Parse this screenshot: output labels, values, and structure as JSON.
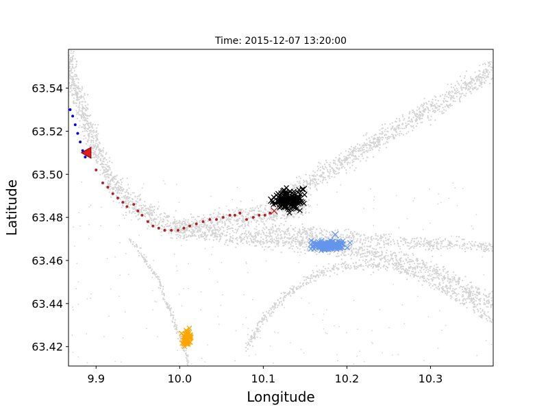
{
  "chart_data": {
    "type": "scatter",
    "title": "Time: 2015-12-07 13:20:00",
    "xlabel": "Longitude",
    "ylabel": "Latitude",
    "xlim": [
      9.867,
      10.375
    ],
    "ylim": [
      63.411,
      63.558
    ],
    "xticks": [
      "9.9",
      "10.0",
      "10.1",
      "10.2",
      "10.3"
    ],
    "xtick_values": [
      9.9,
      10.0,
      10.1,
      10.2,
      10.3
    ],
    "yticks": [
      "63.42",
      "63.44",
      "63.46",
      "63.48",
      "63.50",
      "63.52",
      "63.54"
    ],
    "ytick_values": [
      63.42,
      63.44,
      63.46,
      63.48,
      63.5,
      63.52,
      63.54
    ],
    "grid": false,
    "legend": false,
    "background_traffic": {
      "color": "#d3d3d3",
      "marker": "dot",
      "lanes": [
        {
          "points": [
            [
              9.867,
              63.555
            ],
            [
              9.875,
              63.538
            ],
            [
              9.89,
              63.522
            ],
            [
              9.905,
              63.508
            ],
            [
              9.92,
              63.496
            ],
            [
              9.94,
              63.488
            ],
            [
              9.96,
              63.482
            ],
            [
              9.98,
              63.477
            ],
            [
              10.0,
              63.475
            ],
            [
              10.03,
              63.476
            ],
            [
              10.06,
              63.479
            ],
            [
              10.09,
              63.481
            ],
            [
              10.12,
              63.482
            ],
            [
              10.15,
              63.486
            ]
          ],
          "width": 0.008
        },
        {
          "points": [
            [
              10.0,
              63.475
            ],
            [
              10.05,
              63.472
            ],
            [
              10.1,
              63.47
            ],
            [
              10.15,
              63.468
            ],
            [
              10.2,
              63.466
            ],
            [
              10.25,
              63.462
            ],
            [
              10.3,
              63.456
            ],
            [
              10.33,
              63.45
            ],
            [
              10.36,
              63.443
            ],
            [
              10.375,
              63.44
            ]
          ],
          "width": 0.006
        },
        {
          "points": [
            [
              10.12,
              63.488
            ],
            [
              10.17,
              63.5
            ],
            [
              10.22,
              63.512
            ],
            [
              10.27,
              63.524
            ],
            [
              10.32,
              63.535
            ],
            [
              10.36,
              63.545
            ],
            [
              10.375,
              63.55
            ]
          ],
          "width": 0.007
        },
        {
          "points": [
            [
              10.1,
              63.474
            ],
            [
              10.15,
              63.473
            ],
            [
              10.2,
              63.471
            ],
            [
              10.25,
              63.469
            ],
            [
              10.3,
              63.468
            ],
            [
              10.35,
              63.467
            ],
            [
              10.375,
              63.466
            ]
          ],
          "width": 0.004
        },
        {
          "points": [
            [
              10.08,
              63.42
            ],
            [
              10.1,
              63.433
            ],
            [
              10.13,
              63.445
            ],
            [
              10.17,
              63.455
            ],
            [
              10.21,
              63.458
            ],
            [
              10.25,
              63.458
            ],
            [
              10.29,
              63.452
            ],
            [
              10.32,
              63.446
            ],
            [
              10.345,
              63.44
            ]
          ],
          "width": 0.0035
        },
        {
          "points": [
            [
              9.94,
              63.47
            ],
            [
              9.96,
              63.46
            ],
            [
              9.975,
              63.45
            ],
            [
              9.985,
              63.44
            ],
            [
              9.995,
              63.43
            ],
            [
              10.005,
              63.42
            ],
            [
              10.01,
              63.412
            ]
          ],
          "width": 0.0025
        },
        {
          "points": [
            [
              10.345,
              63.447
            ],
            [
              10.35,
              63.44
            ],
            [
              10.36,
              63.435
            ],
            [
              10.375,
              63.432
            ]
          ],
          "width": 0.003
        }
      ]
    },
    "series": [
      {
        "color": "#0000ff",
        "marker": "dot",
        "x": [
          9.869,
          9.872,
          9.875,
          9.878,
          9.881,
          9.884,
          9.887
        ],
        "y": [
          63.53,
          63.527,
          63.523,
          63.519,
          63.515,
          63.511,
          63.508
        ]
      },
      {
        "color": "#b22222",
        "marker": "dot",
        "x": [
          9.9,
          9.908,
          9.914,
          9.92,
          9.926,
          9.932,
          9.937,
          9.945,
          9.95,
          9.955,
          9.962,
          9.968,
          9.975,
          9.982,
          9.99,
          9.998,
          10.005,
          10.012,
          10.02,
          10.028,
          10.036,
          10.044,
          10.052,
          10.06,
          10.066,
          10.072,
          10.08,
          10.088,
          10.095,
          10.102,
          10.108
        ],
        "y": [
          63.502,
          63.496,
          63.494,
          63.491,
          63.489,
          63.487,
          63.485,
          63.486,
          63.483,
          63.481,
          63.478,
          63.476,
          63.475,
          63.474,
          63.474,
          63.474,
          63.475,
          63.476,
          63.477,
          63.478,
          63.479,
          63.479,
          63.48,
          63.481,
          63.481,
          63.482,
          63.479,
          63.48,
          63.481,
          63.481,
          63.482
        ]
      },
      {
        "color": "#000000",
        "marker": "x",
        "cluster": {
          "center": [
            10.13,
            63.488
          ],
          "spread": [
            0.018,
            0.005
          ],
          "count": 150
        }
      },
      {
        "color": "#6495ed",
        "marker": "x",
        "cluster": {
          "center": [
            10.178,
            63.467
          ],
          "spread": [
            0.021,
            0.0022
          ],
          "count": 150
        }
      },
      {
        "color": "#ffa500",
        "marker": "x",
        "cluster": {
          "center": [
            10.009,
            63.424
          ],
          "spread": [
            0.006,
            0.004
          ],
          "count": 60
        }
      }
    ],
    "extra_markers": [
      {
        "marker": "x",
        "color": "#6495ed",
        "x": 10.186,
        "y": 63.472
      },
      {
        "marker": "x",
        "color": "#000000",
        "x": 10.11,
        "y": 63.488
      },
      {
        "marker": "x",
        "color": "#000000",
        "x": 10.148,
        "y": 63.493
      },
      {
        "marker": "x",
        "color": "#b22222",
        "x": 10.113,
        "y": 63.483
      },
      {
        "marker": "triangle-left",
        "color": "#e31a1c",
        "x": 9.889,
        "y": 63.51
      }
    ]
  }
}
